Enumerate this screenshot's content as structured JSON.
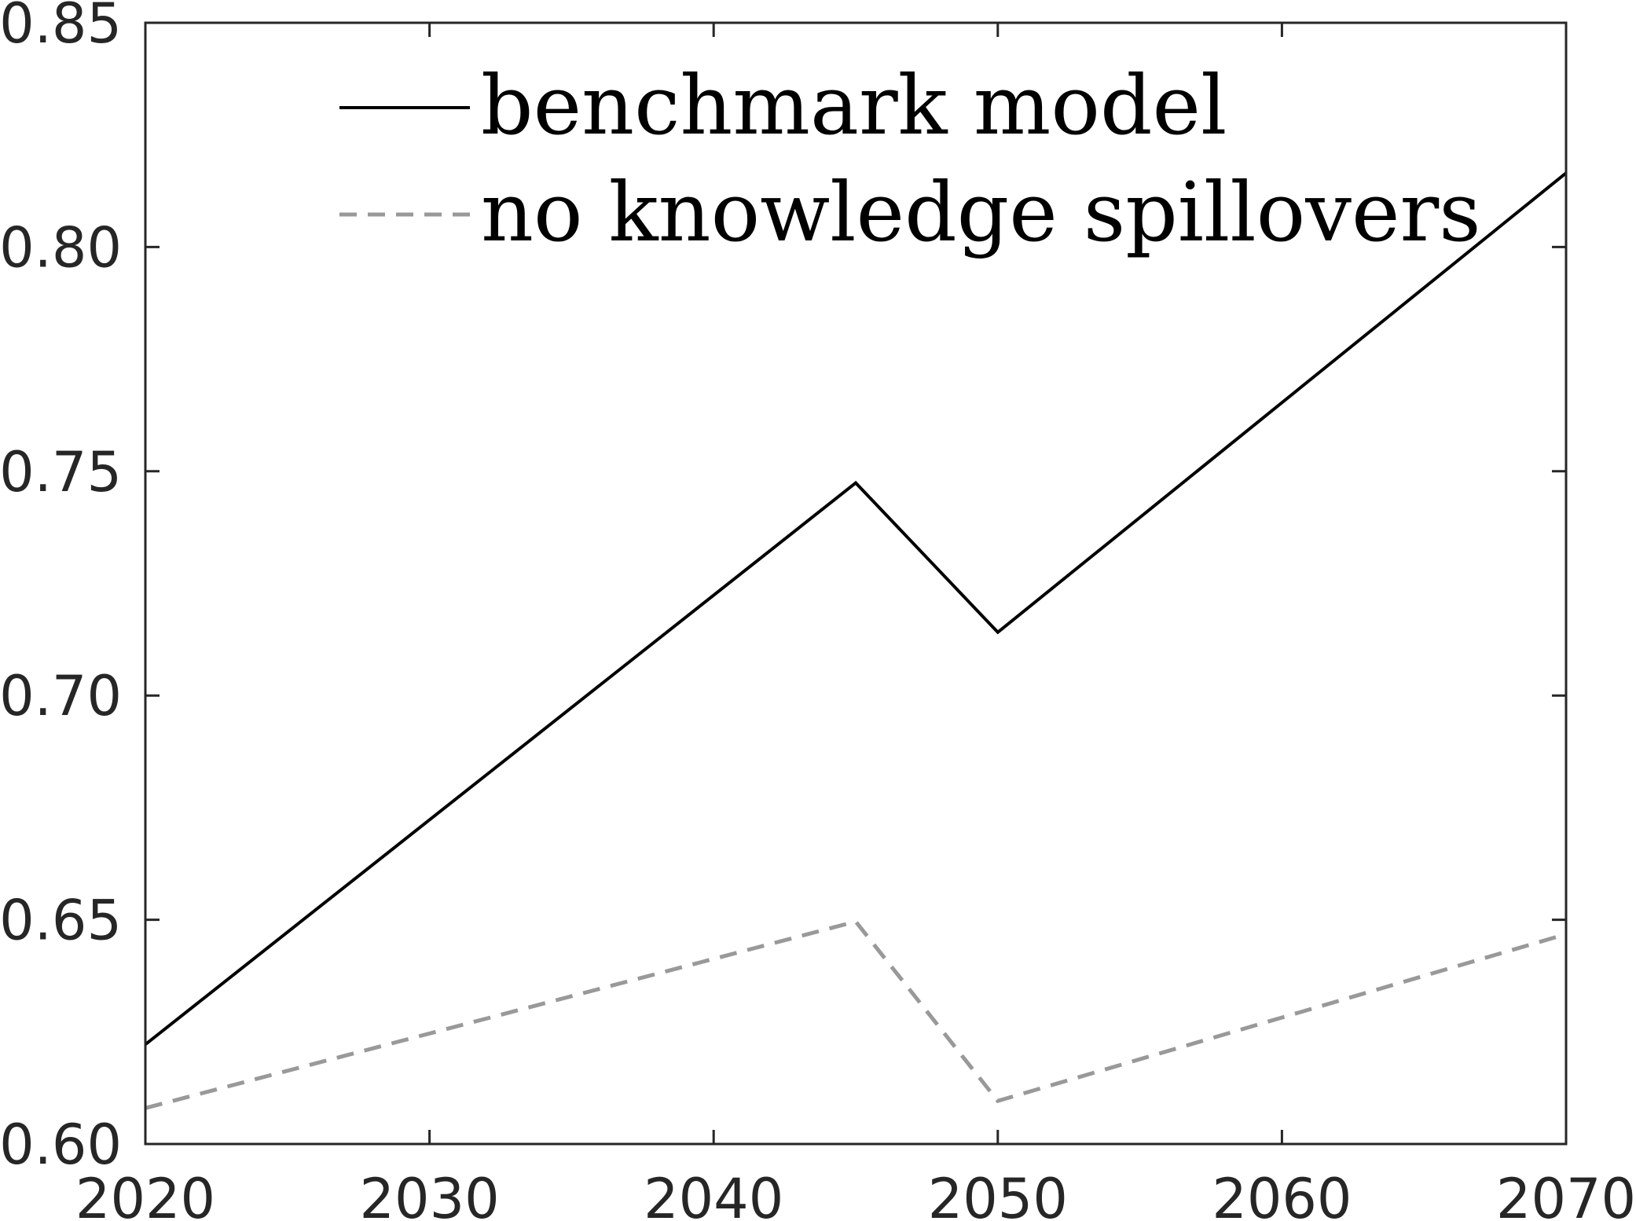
{
  "chart_data": {
    "type": "line",
    "title": "",
    "xlabel": "",
    "ylabel": "",
    "xlim": [
      2020,
      2070
    ],
    "ylim": [
      0.6,
      0.85
    ],
    "xticks": [
      2020,
      2030,
      2040,
      2050,
      2060,
      2070
    ],
    "xtick_labels": [
      "2020",
      "2030",
      "2040",
      "2050",
      "2060",
      "2070"
    ],
    "yticks": [
      0.6,
      0.65,
      0.7,
      0.75,
      0.8,
      0.85
    ],
    "ytick_labels": [
      "0.60",
      "0.65",
      "0.70",
      "0.75",
      "0.80",
      "0.85"
    ],
    "grid": false,
    "legend_position": "top",
    "series": [
      {
        "name": "benchmark model",
        "style": "solid",
        "color": "#000000",
        "x": [
          2020,
          2045,
          2050,
          2070
        ],
        "y": [
          0.6222,
          0.7474,
          0.7141,
          0.8165
        ]
      },
      {
        "name": "no knowledge spillovers",
        "style": "dashed",
        "color": "#999999",
        "x": [
          2020,
          2045,
          2050,
          2070
        ],
        "y": [
          0.608,
          0.6496,
          0.6096,
          0.6468
        ]
      }
    ]
  }
}
